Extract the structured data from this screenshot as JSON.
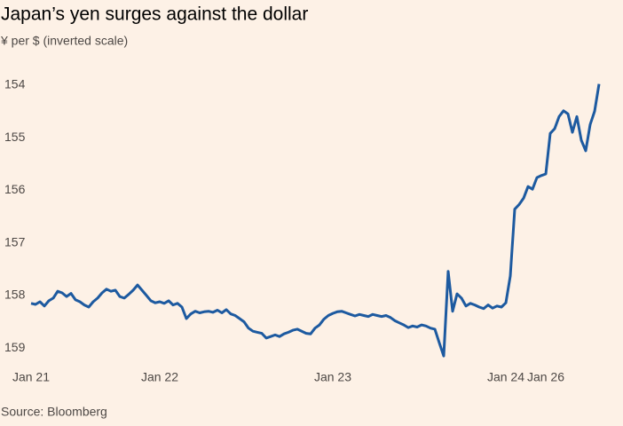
{
  "chart_data": {
    "type": "line",
    "title": "Japan’s yen surges against the dollar",
    "subtitle": "¥ per $ (inverted scale)",
    "source": "Source: Bloomberg",
    "categories": [
      "Jan 21",
      null,
      null,
      null,
      null,
      null,
      null,
      null,
      null,
      null,
      null,
      null,
      null,
      null,
      null,
      null,
      null,
      null,
      null,
      null,
      null,
      null,
      null,
      null,
      null,
      null,
      null,
      null,
      null,
      "Jan 22",
      null,
      null,
      null,
      null,
      null,
      null,
      null,
      null,
      null,
      null,
      null,
      null,
      null,
      null,
      null,
      null,
      null,
      null,
      null,
      null,
      null,
      null,
      null,
      null,
      null,
      null,
      null,
      null,
      null,
      null,
      null,
      null,
      null,
      null,
      null,
      null,
      null,
      null,
      "Jan 23",
      null,
      null,
      null,
      null,
      null,
      null,
      null,
      null,
      null,
      null,
      null,
      null,
      null,
      null,
      null,
      null,
      null,
      null,
      null,
      null,
      null,
      null,
      null,
      null,
      null,
      null,
      null,
      null,
      null,
      null,
      null,
      null,
      null,
      null,
      null,
      null,
      null,
      null,
      "Jan 24",
      null,
      null,
      null,
      null,
      null,
      null,
      null,
      null,
      "Jan 26",
      null,
      null,
      null,
      null,
      null,
      null,
      null,
      null,
      null,
      null,
      null,
      null
    ],
    "series": [
      {
        "name": "¥ per $",
        "color": "#1d5aa0",
        "values": [
          158.15,
          158.17,
          158.12,
          158.2,
          158.1,
          158.05,
          157.92,
          157.95,
          158.02,
          157.96,
          158.08,
          158.12,
          158.18,
          158.22,
          158.12,
          158.05,
          157.95,
          157.88,
          157.92,
          157.9,
          158.02,
          158.05,
          157.98,
          157.9,
          157.8,
          157.9,
          158.0,
          158.1,
          158.14,
          158.12,
          158.15,
          158.1,
          158.18,
          158.15,
          158.22,
          158.44,
          158.35,
          158.3,
          158.33,
          158.31,
          158.3,
          158.32,
          158.28,
          158.33,
          158.27,
          158.35,
          158.38,
          158.44,
          158.5,
          158.62,
          158.68,
          158.7,
          158.72,
          158.81,
          158.78,
          158.75,
          158.78,
          158.73,
          158.7,
          158.66,
          158.64,
          158.68,
          158.72,
          158.73,
          158.62,
          158.56,
          158.45,
          158.38,
          158.34,
          158.31,
          158.3,
          158.33,
          158.36,
          158.39,
          158.36,
          158.38,
          158.4,
          158.36,
          158.38,
          158.4,
          158.38,
          158.42,
          158.48,
          158.52,
          158.56,
          158.61,
          158.58,
          158.6,
          158.56,
          158.58,
          158.62,
          158.64,
          158.9,
          159.15,
          157.54,
          158.3,
          157.97,
          158.05,
          158.2,
          158.15,
          158.18,
          158.22,
          158.25,
          158.18,
          158.24,
          158.2,
          158.22,
          158.14,
          157.63,
          156.36,
          156.27,
          156.15,
          155.93,
          155.98,
          155.76,
          155.72,
          155.69,
          154.92,
          154.83,
          154.6,
          154.49,
          154.55,
          154.9,
          154.6,
          155.05,
          155.25,
          154.75,
          154.5,
          153.98
        ]
      }
    ],
    "ylim": [
      153.7,
      159.3
    ],
    "yticks": [
      154,
      155,
      156,
      157,
      158,
      159
    ],
    "inverted": true
  }
}
